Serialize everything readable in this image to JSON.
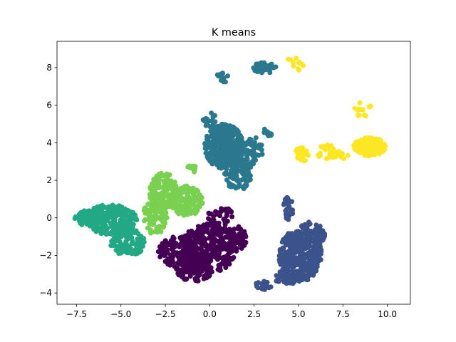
{
  "chart_data": {
    "type": "scatter",
    "title": "K means",
    "xlabel": "",
    "ylabel": "",
    "xlim": [
      -8.6,
      11.3
    ],
    "ylim": [
      -4.6,
      9.4
    ],
    "xticks": [
      -7.5,
      -5.0,
      -2.5,
      0.0,
      2.5,
      5.0,
      7.5,
      10.0
    ],
    "xtick_labels": [
      "−7.5",
      "−5.0",
      "−2.5",
      "0.0",
      "2.5",
      "5.0",
      "7.5",
      "10.0"
    ],
    "yticks": [
      -4,
      -2,
      0,
      2,
      4,
      6,
      8
    ],
    "ytick_labels": [
      "−4",
      "−2",
      "0",
      "2",
      "4",
      "6",
      "8"
    ],
    "grid": false,
    "marker_size": 6,
    "clusters": [
      {
        "color": "#440154",
        "regions": [
          {
            "cx": 0.0,
            "cy": -1.6,
            "rx": 1.6,
            "ry": 1.3,
            "n": 260
          },
          {
            "cx": -1.8,
            "cy": -1.8,
            "rx": 1.1,
            "ry": 0.8,
            "n": 150
          },
          {
            "cx": -0.9,
            "cy": -2.8,
            "rx": 1.0,
            "ry": 0.6,
            "n": 110
          },
          {
            "cx": 1.3,
            "cy": -1.1,
            "rx": 0.8,
            "ry": 0.7,
            "n": 80
          },
          {
            "cx": 0.6,
            "cy": 0.1,
            "rx": 0.7,
            "ry": 0.5,
            "n": 40
          }
        ]
      },
      {
        "color": "#3b528b",
        "regions": [
          {
            "cx": 5.1,
            "cy": -2.0,
            "rx": 1.2,
            "ry": 1.4,
            "n": 330
          },
          {
            "cx": 5.7,
            "cy": -1.1,
            "rx": 0.8,
            "ry": 0.9,
            "n": 90
          },
          {
            "cx": 4.3,
            "cy": -3.2,
            "rx": 0.6,
            "ry": 0.4,
            "n": 50
          },
          {
            "cx": 4.4,
            "cy": 0.5,
            "rx": 0.3,
            "ry": 0.6,
            "n": 30
          },
          {
            "cx": 3.0,
            "cy": -3.6,
            "rx": 0.5,
            "ry": 0.25,
            "n": 20
          }
        ]
      },
      {
        "color": "#2a788e",
        "regions": [
          {
            "cx": 0.8,
            "cy": 3.8,
            "rx": 1.1,
            "ry": 1.2,
            "n": 300
          },
          {
            "cx": 1.6,
            "cy": 2.3,
            "rx": 0.8,
            "ry": 0.9,
            "n": 110
          },
          {
            "cx": 2.2,
            "cy": 3.6,
            "rx": 0.8,
            "ry": 0.8,
            "n": 80
          },
          {
            "cx": 3.1,
            "cy": 8.0,
            "rx": 0.7,
            "ry": 0.3,
            "n": 40
          },
          {
            "cx": 0.7,
            "cy": 7.5,
            "rx": 0.4,
            "ry": 0.3,
            "n": 14
          },
          {
            "cx": 3.3,
            "cy": 4.6,
            "rx": 0.3,
            "ry": 0.3,
            "n": 10
          },
          {
            "cx": 0.0,
            "cy": 5.2,
            "rx": 0.4,
            "ry": 0.4,
            "n": 20
          }
        ]
      },
      {
        "color": "#22a884",
        "regions": [
          {
            "cx": -5.6,
            "cy": -0.1,
            "rx": 1.5,
            "ry": 0.8,
            "n": 260
          },
          {
            "cx": -4.6,
            "cy": -1.3,
            "rx": 1.0,
            "ry": 0.7,
            "n": 110
          },
          {
            "cx": -7.0,
            "cy": 0.0,
            "rx": 0.6,
            "ry": 0.4,
            "n": 50
          }
        ]
      },
      {
        "color": "#7ad151",
        "regions": [
          {
            "cx": -2.6,
            "cy": 1.3,
            "rx": 0.8,
            "ry": 1.1,
            "n": 150
          },
          {
            "cx": -1.3,
            "cy": 0.9,
            "rx": 0.9,
            "ry": 0.8,
            "n": 130
          },
          {
            "cx": -3.1,
            "cy": 0.0,
            "rx": 0.7,
            "ry": 0.9,
            "n": 90
          },
          {
            "cx": -1.0,
            "cy": 2.6,
            "rx": 0.3,
            "ry": 0.2,
            "n": 10
          }
        ]
      },
      {
        "color": "#fde725",
        "regions": [
          {
            "cx": 9.0,
            "cy": 3.8,
            "rx": 0.9,
            "ry": 0.5,
            "n": 130
          },
          {
            "cx": 5.2,
            "cy": 3.4,
            "rx": 0.4,
            "ry": 0.4,
            "n": 22
          },
          {
            "cx": 6.7,
            "cy": 3.5,
            "rx": 0.7,
            "ry": 0.4,
            "n": 25
          },
          {
            "cx": 8.6,
            "cy": 5.8,
            "rx": 0.6,
            "ry": 0.4,
            "n": 14
          },
          {
            "cx": 4.8,
            "cy": 8.2,
            "rx": 0.5,
            "ry": 0.4,
            "n": 12
          },
          {
            "cx": 7.5,
            "cy": 3.3,
            "rx": 0.3,
            "ry": 0.2,
            "n": 6
          }
        ]
      }
    ]
  }
}
